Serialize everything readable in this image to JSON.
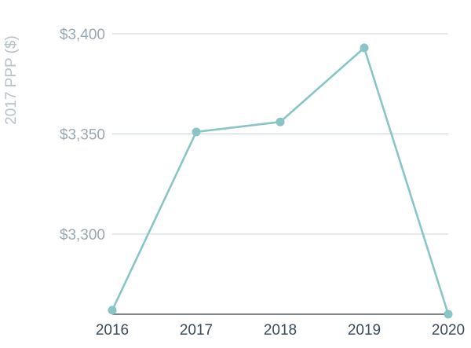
{
  "chart_data": {
    "type": "line",
    "categories": [
      "2016",
      "2017",
      "2018",
      "2019",
      "2020"
    ],
    "series": [
      {
        "values": [
          3262,
          3351,
          3356,
          3393,
          3260
        ]
      }
    ],
    "ylabel": "2017 PPP ($)",
    "xlabel": "",
    "ylim": [
      3260,
      3400
    ],
    "yticks": [
      {
        "value": 3300,
        "label": "$3,300"
      },
      {
        "value": 3350,
        "label": "$3,350"
      },
      {
        "value": 3400,
        "label": "$3,400"
      }
    ],
    "grid": true,
    "legend": "none",
    "color": "#89c5c5"
  }
}
